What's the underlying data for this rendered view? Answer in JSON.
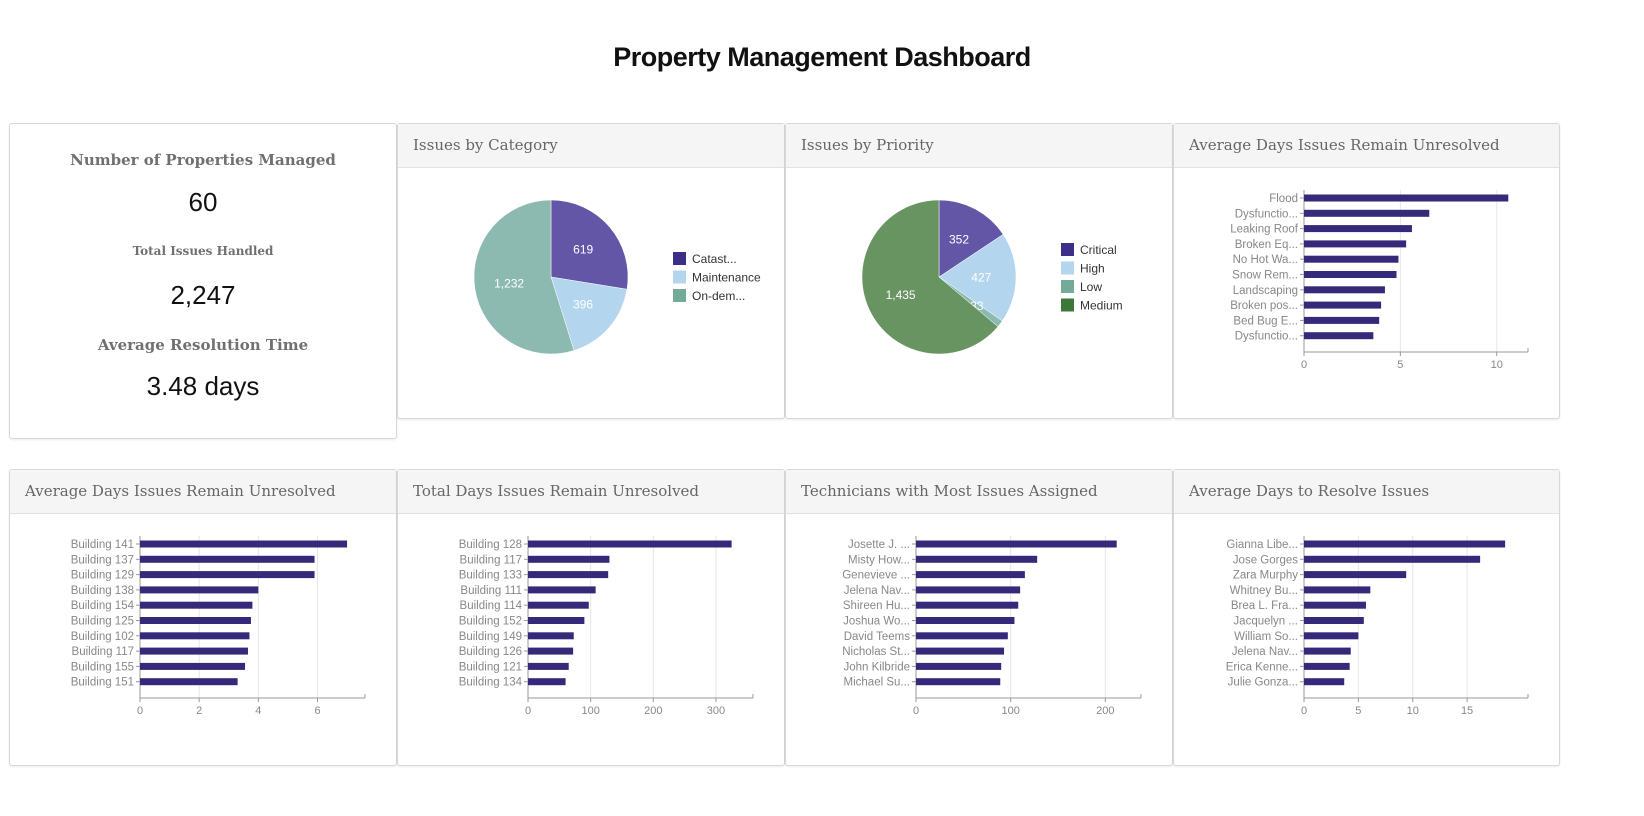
{
  "page_title": "Property Management Dashboard",
  "kpis": {
    "properties_label": "Number of Properties Managed",
    "properties_value": "60",
    "issues_label": "Total Issues Handled",
    "issues_value": "2,247",
    "resolution_label": "Average Resolution Time",
    "resolution_value": "3.48 days"
  },
  "colors": {
    "bar": "#352a7a",
    "grid": "#e6e6e6",
    "axis": "#999999",
    "tick_label": "#888888"
  },
  "chart_data": [
    {
      "id": "issues_by_category",
      "type": "pie",
      "title": "Issues by Category",
      "labels": [
        "Catast...",
        "Maintenance",
        "On-dem..."
      ],
      "values": [
        619,
        396,
        1232
      ],
      "value_labels": [
        "619",
        "396",
        "1,232"
      ],
      "colors": [
        "#6356a6",
        "#b3d5ee",
        "#8cbab0"
      ],
      "legend_colors": [
        "#3b2f87",
        "#b3d5ee",
        "#74ab98"
      ],
      "legend_position": "right"
    },
    {
      "id": "issues_by_priority",
      "type": "pie",
      "title": "Issues by Priority",
      "labels": [
        "Critical",
        "High",
        "Low",
        "Medium"
      ],
      "values": [
        352,
        427,
        33,
        1435
      ],
      "value_labels": [
        "352",
        "427",
        "33",
        "1,435"
      ],
      "colors": [
        "#6356a6",
        "#b3d5ee",
        "#8cbab0",
        "#689461"
      ],
      "legend_colors": [
        "#3b2f87",
        "#b3d5ee",
        "#74ab98",
        "#3e7838"
      ],
      "legend_position": "right"
    },
    {
      "id": "avg_days_unresolved_by_issue",
      "type": "bar",
      "orientation": "horizontal",
      "title": "Average Days Issues Remain Unresolved",
      "categories": [
        "Flood",
        "Dysfunctio...",
        "Leaking Roof",
        "Broken Eq...",
        "No Hot Wa...",
        "Snow Rem...",
        "Landscaping",
        "Broken pos...",
        "Bed Bug E...",
        "Dysfunctio..."
      ],
      "values": [
        10.6,
        6.5,
        5.6,
        5.3,
        4.9,
        4.8,
        4.2,
        4.0,
        3.9,
        3.6
      ],
      "xlim": [
        0,
        11
      ],
      "ticks": [
        0,
        5,
        10
      ],
      "grid": true
    },
    {
      "id": "avg_days_unresolved_by_building",
      "type": "bar",
      "orientation": "horizontal",
      "title": "Average Days Issues Remain Unresolved",
      "categories": [
        "Building 141",
        "Building 137",
        "Building 129",
        "Building 138",
        "Building 154",
        "Building 125",
        "Building 102",
        "Building 117",
        "Building 155",
        "Building 151"
      ],
      "values": [
        7.0,
        5.9,
        5.9,
        4.0,
        3.8,
        3.75,
        3.7,
        3.65,
        3.55,
        3.3
      ],
      "xlim": [
        0,
        7.2
      ],
      "ticks": [
        0,
        2,
        4,
        6
      ],
      "grid": true
    },
    {
      "id": "total_days_unresolved_by_building",
      "type": "bar",
      "orientation": "horizontal",
      "title": "Total Days Issues Remain Unresolved",
      "categories": [
        "Building 128",
        "Building 117",
        "Building 133",
        "Building 111",
        "Building 114",
        "Building 152",
        "Building 149",
        "Building 126",
        "Building 121",
        "Building 134"
      ],
      "values": [
        325,
        130,
        128,
        108,
        97,
        90,
        73,
        72,
        65,
        60
      ],
      "xlim": [
        0,
        340
      ],
      "ticks": [
        0,
        100,
        200,
        300
      ],
      "grid": true
    },
    {
      "id": "technicians_most_issues",
      "type": "bar",
      "orientation": "horizontal",
      "title": "Technicians with Most Issues Assigned",
      "categories": [
        "Josette J. ...",
        "Misty How...",
        "Genevieve ...",
        "Jelena Nav...",
        "Shireen Hu...",
        "Joshua Wo...",
        "David Teems",
        "Nicholas St...",
        "John Kilbride",
        "Michael Su..."
      ],
      "values": [
        212,
        128,
        115,
        110,
        108,
        104,
        97,
        93,
        90,
        89
      ],
      "xlim": [
        0,
        225
      ],
      "ticks": [
        0,
        100,
        200
      ],
      "grid": true
    },
    {
      "id": "avg_days_to_resolve",
      "type": "bar",
      "orientation": "horizontal",
      "title": "Average Days to Resolve Issues",
      "categories": [
        "Gianna Libe...",
        "Jose Gorges",
        "Zara Murphy",
        "Whitney Bu...",
        "Brea L. Fra...",
        "Jacquelyn ...",
        "William So...",
        "Jelena Nav...",
        "Erica Kenne...",
        "Julie Gonza..."
      ],
      "values": [
        18.5,
        16.2,
        9.4,
        6.1,
        5.7,
        5.5,
        5.0,
        4.3,
        4.2,
        3.7
      ],
      "xlim": [
        0,
        19.5
      ],
      "ticks": [
        0,
        5,
        10,
        15
      ],
      "grid": true
    }
  ]
}
